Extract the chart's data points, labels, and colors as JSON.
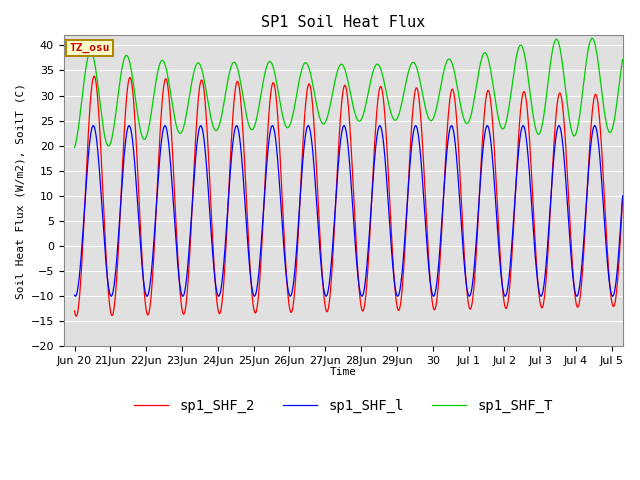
{
  "title": "SP1 Soil Heat Flux",
  "ylabel": "Soil Heat Flux (W/m2), SoilT (C)",
  "xlabel": "Time",
  "ylim": [
    -20,
    42
  ],
  "yticks": [
    -20,
    -15,
    -10,
    -5,
    0,
    5,
    10,
    15,
    20,
    25,
    30,
    35,
    40
  ],
  "bg_color": "#e0e0e0",
  "fig_color": "#ffffff",
  "line_colors": [
    "#ff0000",
    "#0000ff",
    "#00cc00"
  ],
  "line_labels": [
    "sp1_SHF_2",
    "sp1_SHF_l",
    "sp1_SHF_T"
  ],
  "tz_label": "TZ_osu",
  "tz_color": "#cc0000",
  "tz_bg": "#ffffcc",
  "grid_color": "#ffffff",
  "tick_fontsize": 8,
  "legend_fontsize": 10,
  "x_tick_labels": [
    "Jun 20",
    "21Jun",
    "22Jun",
    "23Jun",
    "24Jun",
    "25Jun",
    "26Jun",
    "27Jun",
    "28Jun",
    "29Jun",
    "30",
    "Jul 1",
    "Jul 2",
    "Jul 3",
    "Jul 4",
    "Jul 5"
  ],
  "x_tick_positions": [
    0,
    1,
    2,
    3,
    4,
    5,
    6,
    7,
    8,
    9,
    10,
    11,
    12,
    13,
    14,
    15
  ]
}
